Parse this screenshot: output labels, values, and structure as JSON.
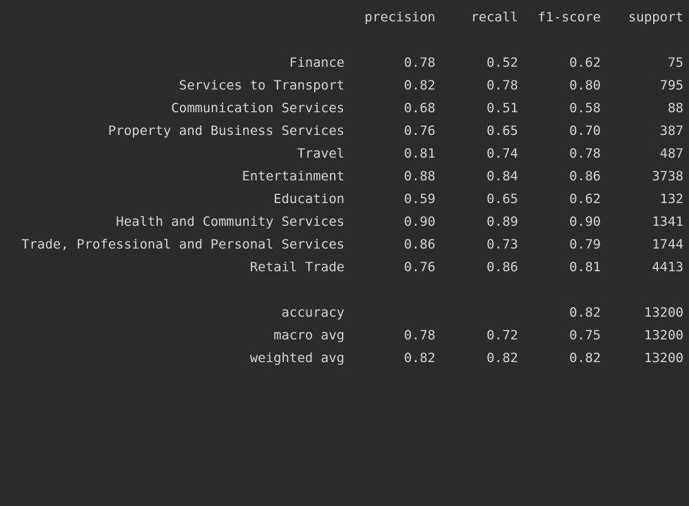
{
  "report": {
    "header": {
      "precision": "precision",
      "recall": "recall",
      "f1": "f1-score",
      "support": "support"
    },
    "classes": [
      {
        "label": "Finance",
        "precision": "0.78",
        "recall": "0.52",
        "f1": "0.62",
        "support": "75"
      },
      {
        "label": "Services to Transport",
        "precision": "0.82",
        "recall": "0.78",
        "f1": "0.80",
        "support": "795"
      },
      {
        "label": "Communication Services",
        "precision": "0.68",
        "recall": "0.51",
        "f1": "0.58",
        "support": "88"
      },
      {
        "label": "Property and Business Services",
        "precision": "0.76",
        "recall": "0.65",
        "f1": "0.70",
        "support": "387"
      },
      {
        "label": "Travel",
        "precision": "0.81",
        "recall": "0.74",
        "f1": "0.78",
        "support": "487"
      },
      {
        "label": "Entertainment",
        "precision": "0.88",
        "recall": "0.84",
        "f1": "0.86",
        "support": "3738"
      },
      {
        "label": "Education",
        "precision": "0.59",
        "recall": "0.65",
        "f1": "0.62",
        "support": "132"
      },
      {
        "label": "Health and Community Services",
        "precision": "0.90",
        "recall": "0.89",
        "f1": "0.90",
        "support": "1341"
      },
      {
        "label": "Trade, Professional and Personal Services",
        "precision": "0.86",
        "recall": "0.73",
        "f1": "0.79",
        "support": "1744"
      },
      {
        "label": "Retail Trade",
        "precision": "0.76",
        "recall": "0.86",
        "f1": "0.81",
        "support": "4413"
      }
    ],
    "summary": [
      {
        "label": "accuracy",
        "precision": "",
        "recall": "",
        "f1": "0.82",
        "support": "13200"
      },
      {
        "label": "macro avg",
        "precision": "0.78",
        "recall": "0.72",
        "f1": "0.75",
        "support": "13200"
      },
      {
        "label": "weighted avg",
        "precision": "0.82",
        "recall": "0.82",
        "f1": "0.82",
        "support": "13200"
      }
    ]
  },
  "colors": {
    "background": "#2b2b2b",
    "text": "#d4d4d4"
  }
}
